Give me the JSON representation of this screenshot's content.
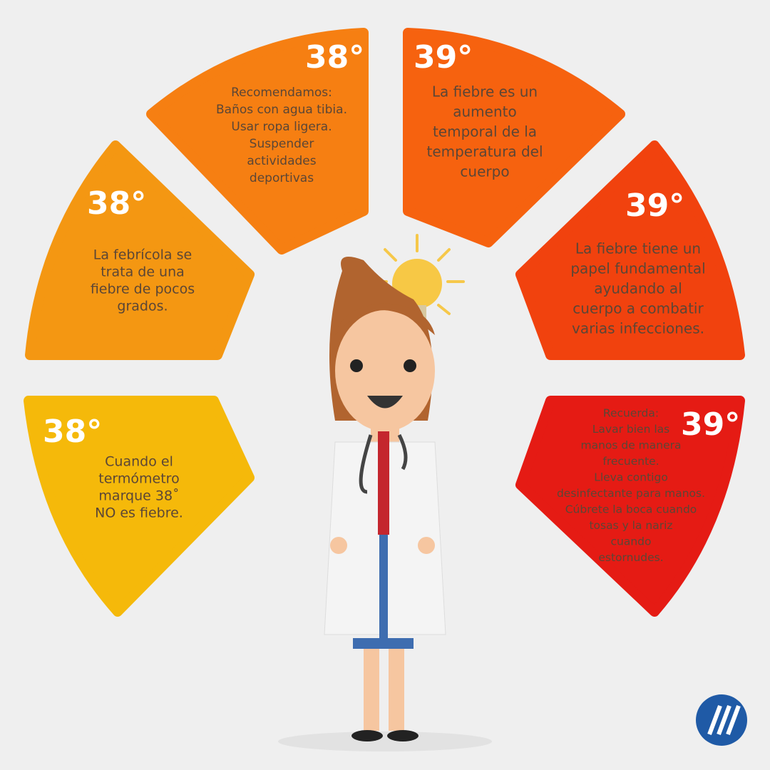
{
  "segments": [
    {
      "temp": "38°",
      "lines": [
        "Cuando el",
        "termómetro",
        "marque 38˚",
        "NO es fiebre."
      ]
    },
    {
      "temp": "38°",
      "lines": [
        "La febrícola se",
        "trata de una",
        "fiebre de pocos",
        "grados."
      ]
    },
    {
      "temp": "38°",
      "lines": [
        "Recomendamos:",
        "Baños con agua tibia.",
        "Usar ropa ligera.",
        "Suspender",
        "actividades",
        "deportivas"
      ]
    },
    {
      "temp": "39°",
      "lines": [
        "La fiebre es un",
        "aumento",
        "temporal de la",
        "temperatura del",
        "cuerpo"
      ]
    },
    {
      "temp": "39°",
      "lines": [
        "La fiebre tiene un",
        "papel fundamental",
        "ayudando al",
        "cuerpo a combatir",
        "varias infecciones."
      ]
    },
    {
      "temp": "39°",
      "lines": [
        "Recuerda:",
        "Lavar bien las",
        "manos de manera",
        "frecuente.",
        "Lleva contigo",
        "desinfectante para manos.",
        "Cúbrete la boca cuando",
        "tosas y la nariz",
        "cuando",
        "estornudes."
      ]
    }
  ]
}
